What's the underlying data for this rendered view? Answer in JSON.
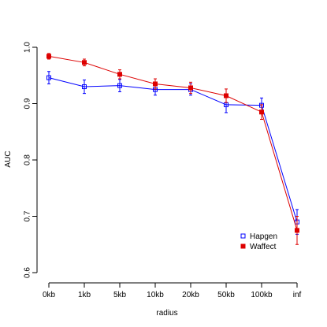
{
  "chart_data": {
    "type": "line",
    "title": "",
    "xlabel": "radius",
    "ylabel": "AUC",
    "categories": [
      "0kb",
      "1kb",
      "5kb",
      "10kb",
      "20kb",
      "50kb",
      "100kb",
      "inf"
    ],
    "yticks": [
      "0.6",
      "0.7",
      "0.8",
      "0.9",
      "1.0"
    ],
    "ylim": [
      0.6,
      1.0
    ],
    "grid": false,
    "legend_position": "bottom-right",
    "error_bars": true,
    "series": [
      {
        "name": "Hapgen",
        "color": "#0000ff",
        "marker": "open-square",
        "values": [
          0.946,
          0.93,
          0.932,
          0.925,
          0.925,
          0.898,
          0.897,
          0.69
        ],
        "error": [
          0.011,
          0.012,
          0.011,
          0.01,
          0.01,
          0.014,
          0.013,
          0.022
        ]
      },
      {
        "name": "Waffect",
        "color": "#dd0000",
        "marker": "filled-square",
        "values": [
          0.984,
          0.973,
          0.952,
          0.935,
          0.928,
          0.914,
          0.885,
          0.675
        ],
        "error": [
          0.005,
          0.006,
          0.008,
          0.009,
          0.01,
          0.012,
          0.013,
          0.025
        ]
      }
    ]
  }
}
